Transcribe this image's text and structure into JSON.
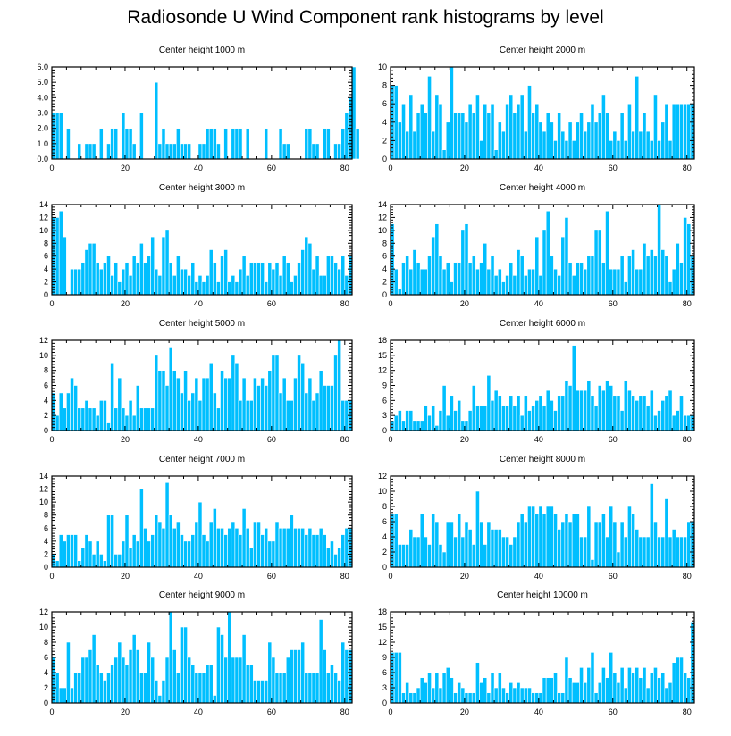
{
  "title": "Radiosonde U Wind Component rank histograms by level",
  "colors": {
    "bar": "#00bfff",
    "bar_edge": "#ffffff",
    "axis": "#000000"
  },
  "chart_data": [
    {
      "type": "bar",
      "title": "Center height 1000 m",
      "xlim": [
        0,
        82
      ],
      "ylim": [
        0,
        6
      ],
      "yticks": [
        0,
        1,
        2,
        3,
        4,
        5,
        6
      ],
      "yticklabels": [
        "0.0",
        "1.0",
        "2.0",
        "3.0",
        "4.0",
        "5.0",
        "6.0"
      ],
      "xticks": [
        0,
        20,
        40,
        60,
        80
      ],
      "values": [
        3,
        3,
        3,
        0,
        2,
        0,
        0,
        1,
        0,
        1,
        1,
        1,
        0,
        2,
        0,
        1,
        2,
        2,
        0,
        3,
        2,
        2,
        1,
        0,
        3,
        0,
        0,
        0,
        5,
        1,
        2,
        1,
        1,
        1,
        2,
        1,
        1,
        1,
        0,
        0,
        1,
        1,
        2,
        2,
        2,
        1,
        0,
        2,
        0,
        2,
        2,
        2,
        0,
        2,
        0,
        0,
        0,
        0,
        2,
        0,
        0,
        0,
        2,
        1,
        1,
        0,
        0,
        0,
        0,
        2,
        2,
        1,
        1,
        0,
        2,
        2,
        0,
        1,
        1,
        2,
        3,
        4,
        6,
        2,
        0
      ]
    },
    {
      "type": "bar",
      "title": "Center height 2000 m",
      "xlim": [
        0,
        82
      ],
      "ylim": [
        0,
        10
      ],
      "yticks": [
        0,
        2,
        4,
        6,
        8,
        10
      ],
      "yticklabels": [
        "0",
        "2",
        "4",
        "6",
        "8",
        "10"
      ],
      "xticks": [
        0,
        20,
        40,
        60,
        80
      ],
      "values": [
        8,
        8,
        4,
        6,
        3,
        7,
        3,
        5,
        6,
        5,
        9,
        3,
        7,
        6,
        1,
        4,
        10,
        5,
        5,
        5,
        4,
        6,
        5,
        7,
        2,
        6,
        5,
        6,
        1,
        4,
        3,
        6,
        7,
        5,
        6,
        7,
        3,
        8,
        5,
        6,
        4,
        3,
        5,
        4,
        2,
        5,
        3,
        2,
        4,
        2,
        4,
        5,
        3,
        4,
        6,
        4,
        5,
        7,
        5,
        2,
        3,
        2,
        5,
        2,
        6,
        3,
        9,
        3,
        5,
        3,
        2,
        7,
        2,
        4,
        6,
        2,
        6,
        6,
        6,
        6,
        6,
        6
      ]
    },
    {
      "type": "bar",
      "title": "Center height 3000 m",
      "xlim": [
        0,
        82
      ],
      "ylim": [
        0,
        14
      ],
      "yticks": [
        0,
        2,
        4,
        6,
        8,
        10,
        12,
        14
      ],
      "yticklabels": [
        "0",
        "2",
        "4",
        "6",
        "8",
        "10",
        "12",
        "14"
      ],
      "xticks": [
        0,
        20,
        40,
        60,
        80
      ],
      "values": [
        12,
        12,
        13,
        9,
        0,
        4,
        4,
        4,
        5,
        7,
        8,
        8,
        5,
        4,
        5,
        6,
        3,
        5,
        2,
        4,
        5,
        3,
        6,
        5,
        8,
        5,
        6,
        9,
        4,
        3,
        9,
        10,
        5,
        3,
        6,
        4,
        4,
        3,
        5,
        2,
        3,
        2,
        3,
        7,
        5,
        2,
        6,
        7,
        2,
        3,
        2,
        4,
        6,
        3,
        5,
        5,
        5,
        5,
        2,
        5,
        4,
        5,
        3,
        6,
        5,
        2,
        3,
        5,
        7,
        9,
        8,
        4,
        6,
        3,
        3,
        6,
        6,
        5,
        4,
        6,
        3,
        6
      ]
    },
    {
      "type": "bar",
      "title": "Center height 4000 m",
      "xlim": [
        0,
        82
      ],
      "ylim": [
        0,
        14
      ],
      "yticks": [
        0,
        2,
        4,
        6,
        8,
        10,
        12,
        14
      ],
      "yticklabels": [
        "0",
        "2",
        "4",
        "6",
        "8",
        "10",
        "12",
        "14"
      ],
      "xticks": [
        0,
        20,
        40,
        60,
        80
      ],
      "values": [
        11,
        4,
        1,
        5,
        6,
        4,
        7,
        5,
        4,
        4,
        6,
        9,
        11,
        6,
        4,
        5,
        2,
        5,
        5,
        10,
        11,
        5,
        6,
        4,
        5,
        8,
        4,
        6,
        3,
        4,
        2,
        3,
        5,
        3,
        7,
        6,
        3,
        4,
        4,
        9,
        3,
        10,
        13,
        6,
        4,
        3,
        9,
        12,
        5,
        3,
        5,
        5,
        4,
        6,
        6,
        10,
        10,
        5,
        13,
        4,
        4,
        4,
        6,
        2,
        6,
        7,
        4,
        4,
        8,
        6,
        7,
        6,
        14,
        7,
        6,
        2,
        4,
        8,
        5,
        12,
        11,
        6
      ]
    },
    {
      "type": "bar",
      "title": "Center height 5000 m",
      "xlim": [
        0,
        82
      ],
      "ylim": [
        0,
        12
      ],
      "yticks": [
        0,
        2,
        4,
        6,
        8,
        10,
        12
      ],
      "yticklabels": [
        "0",
        "2",
        "4",
        "6",
        "8",
        "10",
        "12"
      ],
      "xticks": [
        0,
        20,
        40,
        60,
        80
      ],
      "values": [
        5,
        2,
        5,
        3,
        5,
        7,
        6,
        3,
        3,
        4,
        3,
        3,
        2,
        4,
        4,
        1,
        9,
        3,
        7,
        3,
        2,
        4,
        2,
        6,
        3,
        3,
        3,
        3,
        10,
        8,
        8,
        6,
        11,
        8,
        7,
        5,
        8,
        4,
        5,
        7,
        4,
        7,
        7,
        9,
        5,
        3,
        8,
        7,
        7,
        10,
        9,
        4,
        7,
        4,
        4,
        7,
        6,
        7,
        6,
        8,
        10,
        10,
        5,
        7,
        4,
        4,
        7,
        10,
        9,
        5,
        7,
        4,
        5,
        8,
        6,
        6,
        6,
        10,
        12,
        4,
        4,
        4
      ]
    },
    {
      "type": "bar",
      "title": "Center height 6000 m",
      "xlim": [
        0,
        82
      ],
      "ylim": [
        0,
        18
      ],
      "yticks": [
        0,
        3,
        6,
        9,
        12,
        15,
        18
      ],
      "yticklabels": [
        "0",
        "3",
        "6",
        "9",
        "12",
        "15",
        "18"
      ],
      "xticks": [
        0,
        20,
        40,
        60,
        80
      ],
      "values": [
        2,
        3,
        4,
        2,
        4,
        4,
        2,
        2,
        2,
        5,
        3,
        5,
        1,
        4,
        9,
        3,
        7,
        4,
        6,
        2,
        2,
        4,
        9,
        5,
        5,
        5,
        11,
        6,
        8,
        7,
        5,
        5,
        7,
        5,
        7,
        3,
        7,
        4,
        5,
        6,
        7,
        5,
        8,
        6,
        4,
        7,
        7,
        10,
        9,
        17,
        8,
        8,
        8,
        10,
        7,
        5,
        9,
        8,
        10,
        9,
        7,
        7,
        4,
        10,
        8,
        7,
        6,
        7,
        7,
        5,
        8,
        3,
        4,
        6,
        7,
        8,
        3,
        4,
        7,
        3,
        3,
        3
      ]
    },
    {
      "type": "bar",
      "title": "Center height 7000 m",
      "xlim": [
        0,
        82
      ],
      "ylim": [
        0,
        14
      ],
      "yticks": [
        0,
        2,
        4,
        6,
        8,
        10,
        12,
        14
      ],
      "yticklabels": [
        "0",
        "2",
        "4",
        "6",
        "8",
        "10",
        "12",
        "14"
      ],
      "xticks": [
        0,
        20,
        40,
        60,
        80
      ],
      "values": [
        2,
        1,
        5,
        4,
        5,
        5,
        5,
        1,
        3,
        5,
        4,
        2,
        4,
        2,
        1,
        8,
        8,
        2,
        2,
        4,
        8,
        3,
        5,
        4,
        12,
        6,
        4,
        5,
        8,
        7,
        6,
        13,
        8,
        6,
        7,
        5,
        4,
        4,
        5,
        7,
        10,
        5,
        4,
        7,
        9,
        6,
        6,
        5,
        6,
        7,
        6,
        5,
        9,
        6,
        3,
        7,
        7,
        5,
        6,
        4,
        4,
        7,
        6,
        6,
        6,
        8,
        6,
        6,
        6,
        5,
        6,
        5,
        5,
        6,
        5,
        3,
        4,
        2,
        3,
        5,
        6,
        6
      ]
    },
    {
      "type": "bar",
      "title": "Center height 8000 m",
      "xlim": [
        0,
        82
      ],
      "ylim": [
        0,
        12
      ],
      "yticks": [
        0,
        2,
        4,
        6,
        8,
        10,
        12
      ],
      "yticklabels": [
        "0",
        "2",
        "4",
        "6",
        "8",
        "10",
        "12"
      ],
      "xticks": [
        0,
        20,
        40,
        60,
        80
      ],
      "values": [
        7,
        7,
        3,
        3,
        3,
        5,
        4,
        4,
        7,
        4,
        3,
        7,
        6,
        3,
        2,
        6,
        6,
        4,
        7,
        4,
        6,
        5,
        3,
        10,
        6,
        3,
        6,
        5,
        5,
        5,
        4,
        4,
        3,
        4,
        6,
        7,
        6,
        8,
        8,
        7,
        8,
        7,
        8,
        8,
        7,
        5,
        6,
        7,
        6,
        7,
        7,
        4,
        4,
        8,
        1,
        6,
        6,
        7,
        4,
        8,
        6,
        2,
        6,
        4,
        8,
        7,
        5,
        4,
        4,
        4,
        11,
        6,
        4,
        4,
        9,
        4,
        5,
        4,
        4,
        4,
        6,
        6
      ]
    },
    {
      "type": "bar",
      "title": "Center height 9000 m",
      "xlim": [
        0,
        82
      ],
      "ylim": [
        0,
        12
      ],
      "yticks": [
        0,
        2,
        4,
        6,
        8,
        10,
        12
      ],
      "yticklabels": [
        "0",
        "2",
        "4",
        "6",
        "8",
        "10",
        "12"
      ],
      "xticks": [
        0,
        20,
        40,
        60,
        80
      ],
      "values": [
        6,
        4,
        2,
        2,
        8,
        2,
        4,
        4,
        6,
        6,
        7,
        9,
        5,
        4,
        3,
        4,
        5,
        6,
        8,
        6,
        5,
        7,
        9,
        7,
        4,
        4,
        8,
        6,
        3,
        1,
        3,
        6,
        12,
        7,
        4,
        10,
        10,
        6,
        5,
        4,
        4,
        4,
        5,
        5,
        1,
        10,
        9,
        6,
        12,
        6,
        6,
        6,
        9,
        5,
        5,
        3,
        3,
        3,
        3,
        8,
        6,
        4,
        4,
        4,
        6,
        7,
        7,
        7,
        8,
        4,
        4,
        4,
        4,
        11,
        7,
        4,
        5,
        4,
        3,
        8,
        7,
        7
      ]
    },
    {
      "type": "bar",
      "title": "Center height 10000 m",
      "xlim": [
        0,
        82
      ],
      "ylim": [
        0,
        18
      ],
      "yticks": [
        0,
        3,
        6,
        9,
        12,
        15,
        18
      ],
      "yticklabels": [
        "0",
        "3",
        "6",
        "9",
        "12",
        "15",
        "18"
      ],
      "xticks": [
        0,
        20,
        40,
        60,
        80
      ],
      "values": [
        10,
        10,
        10,
        2,
        4,
        2,
        2,
        3,
        5,
        4,
        6,
        3,
        6,
        3,
        6,
        7,
        5,
        2,
        4,
        3,
        2,
        2,
        2,
        8,
        4,
        5,
        2,
        6,
        3,
        6,
        3,
        2,
        4,
        3,
        4,
        3,
        3,
        3,
        2,
        2,
        2,
        5,
        5,
        5,
        6,
        2,
        2,
        9,
        5,
        4,
        4,
        7,
        4,
        7,
        10,
        2,
        4,
        7,
        5,
        10,
        6,
        4,
        7,
        3,
        7,
        6,
        7,
        5,
        7,
        3,
        6,
        7,
        5,
        6,
        3,
        4,
        8,
        9,
        9,
        6,
        5,
        16
      ]
    }
  ]
}
